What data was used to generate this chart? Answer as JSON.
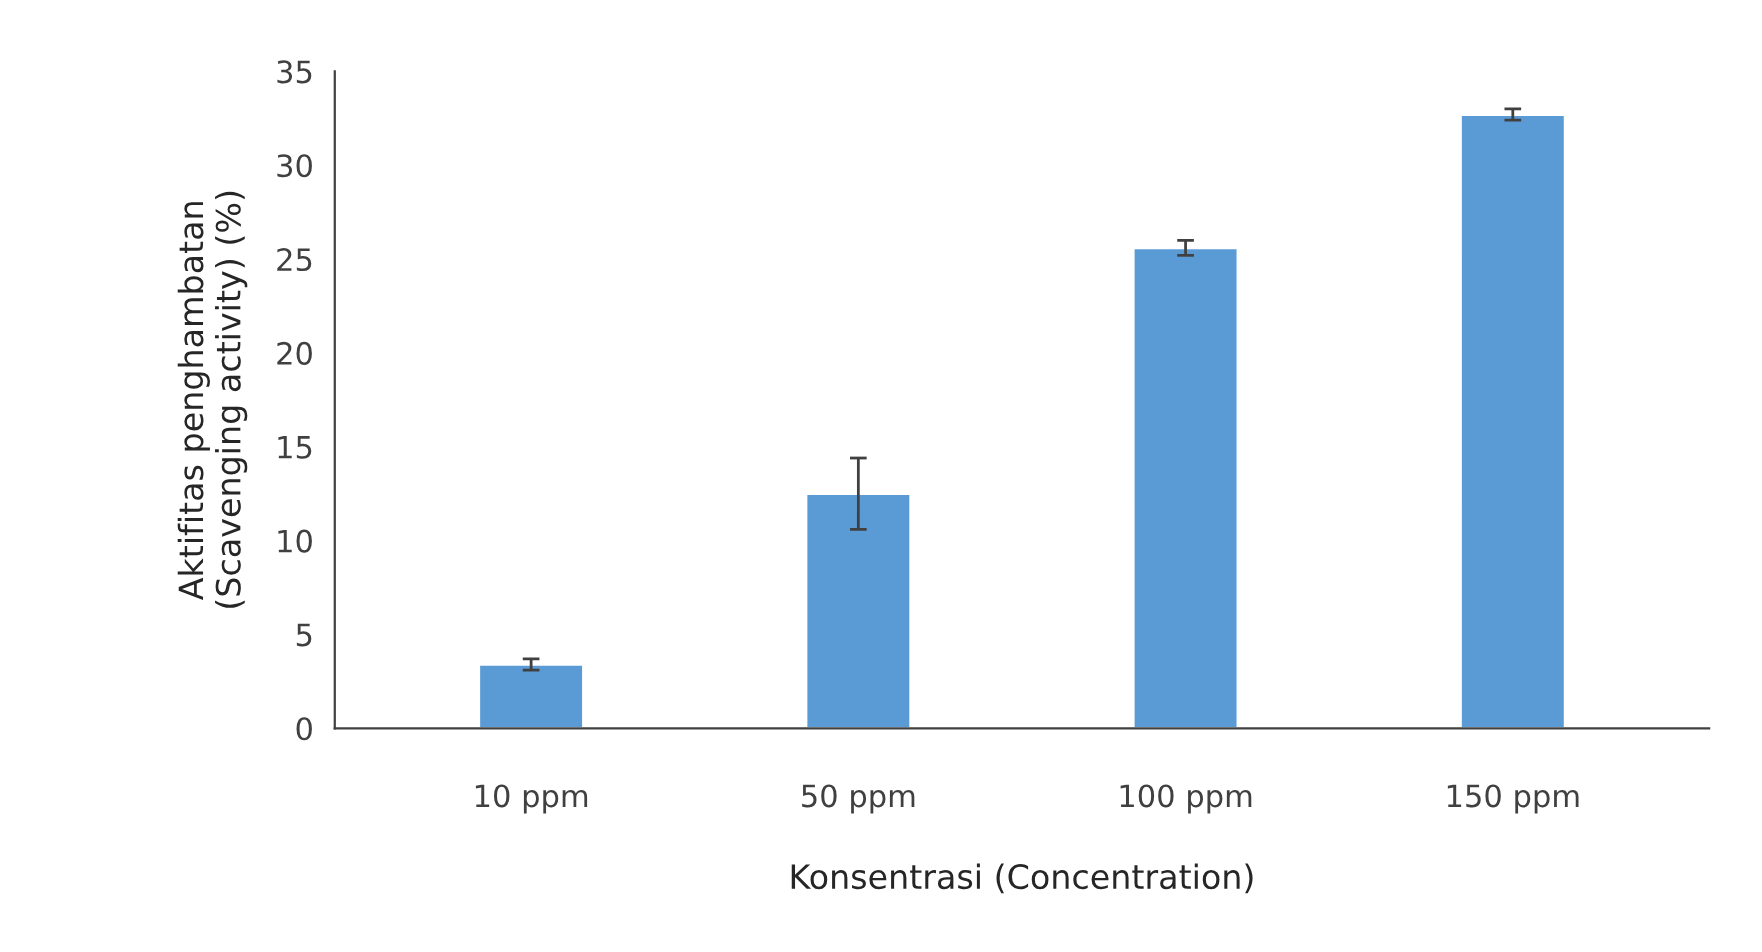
{
  "chart_data": {
    "type": "bar",
    "xlabel": "Konsentrasi (Concentration)",
    "ylabel": "Aktifitas penghambatan\n(Scavenging activity) (%)",
    "categories": [
      "10 ppm",
      "50 ppm",
      "100 ppm",
      "150 ppm"
    ],
    "values": [
      3.4,
      12.5,
      25.6,
      32.7
    ],
    "errors": [
      0.3,
      1.9,
      0.4,
      0.3
    ],
    "color": "#5b9bd5",
    "ylim": [
      0,
      35
    ],
    "yticks": [
      0,
      5,
      10,
      15,
      20,
      25,
      30,
      35
    ],
    "grid": false,
    "legend": false
  }
}
